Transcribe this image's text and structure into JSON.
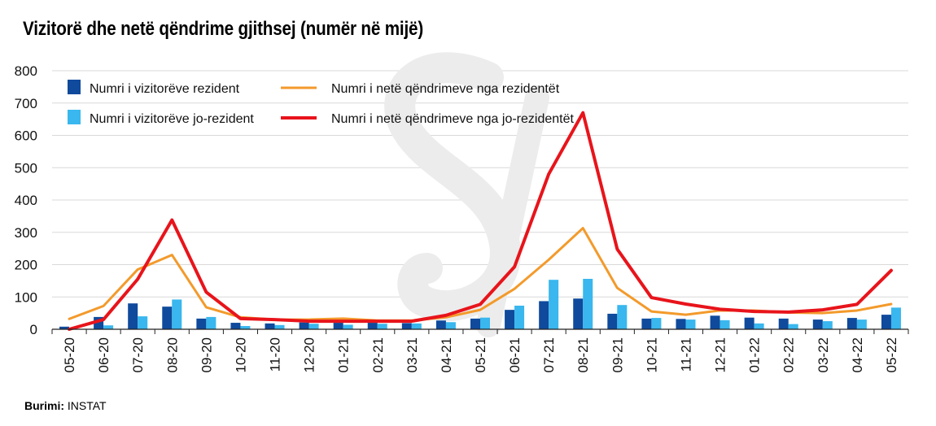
{
  "title": "Vizitorë dhe netë qëndrime gjithsej (numër në mijë)",
  "source_label": "Burimi:",
  "source_value": "INSTAT",
  "colors": {
    "resident_bar": "#0f4a9c",
    "nonresident_bar": "#39b7ee",
    "resident_nights": "#f39a2b",
    "nonresident_nights": "#e8141b",
    "grid": "#d9d9d9"
  },
  "chart_data": {
    "type": "bar",
    "categories": [
      "05-20",
      "06-20",
      "07-20",
      "08-20",
      "09-20",
      "10-20",
      "11-20",
      "12-20",
      "01-21",
      "02-21",
      "03-21",
      "04-21",
      "05-21",
      "06-21",
      "07-21",
      "08-21",
      "09-21",
      "10-21",
      "11-21",
      "12-21",
      "01-22",
      "02-22",
      "03-22",
      "04-22",
      "05-22"
    ],
    "ylim": [
      0,
      800
    ],
    "yticks": [
      0,
      100,
      200,
      300,
      400,
      500,
      600,
      700,
      800
    ],
    "grid": true,
    "legend_position": "top-left",
    "series": [
      {
        "name": "Numri i vizitorëve rezident",
        "kind": "bar",
        "values": [
          8,
          38,
          80,
          70,
          33,
          20,
          18,
          21,
          20,
          20,
          19,
          27,
          33,
          60,
          87,
          95,
          48,
          33,
          32,
          42,
          36,
          33,
          30,
          35,
          45
        ]
      },
      {
        "name": "Numri i vizitorëve jo-rezident",
        "kind": "bar",
        "values": [
          0,
          12,
          40,
          92,
          38,
          10,
          13,
          17,
          14,
          17,
          18,
          22,
          36,
          73,
          153,
          156,
          75,
          35,
          30,
          28,
          18,
          16,
          25,
          30,
          67
        ]
      },
      {
        "name": "Numri i netë qëndrimeve nga rezidentët",
        "kind": "line",
        "values": [
          32,
          72,
          185,
          230,
          68,
          37,
          30,
          30,
          33,
          27,
          27,
          37,
          60,
          125,
          215,
          313,
          128,
          55,
          45,
          58,
          58,
          52,
          50,
          58,
          78
        ]
      },
      {
        "name": "Numri i netë qëndrimeve nga jo-rezidentët",
        "kind": "line",
        "values": [
          0,
          30,
          155,
          338,
          115,
          33,
          30,
          25,
          25,
          25,
          25,
          43,
          77,
          193,
          480,
          670,
          248,
          98,
          78,
          62,
          55,
          53,
          60,
          77,
          182
        ]
      }
    ]
  }
}
